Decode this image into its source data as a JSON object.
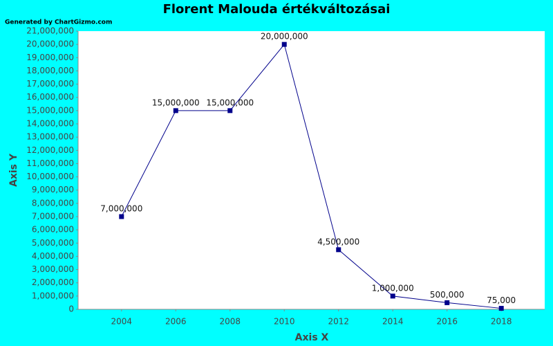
{
  "chart_data": {
    "type": "line",
    "title": "Florent Malouda értékváltozásai",
    "credit": "Generated by ChartGizmo.com",
    "x_label": "Axis X",
    "y_label": "Axis Y",
    "x": [
      2004,
      2006,
      2008,
      2010,
      2012,
      2014,
      2016,
      2018
    ],
    "series": [
      {
        "color": "#00008b",
        "values": [
          7000000,
          15000000,
          15000000,
          20000000,
          4500000,
          1000000,
          500000,
          75000
        ],
        "value_labels": [
          "7,000,000",
          "15,000,000",
          "15,000,000",
          "20,000,000",
          "4,500,000",
          "1,000,000",
          "500,000",
          "75,000"
        ]
      }
    ],
    "xlim": [
      2002.4,
      2019.6
    ],
    "xticks": [
      2004,
      2006,
      2008,
      2010,
      2012,
      2014,
      2016,
      2018
    ],
    "ylim": [
      0,
      21000000
    ],
    "yticks": [
      0,
      {
        "value": 1000000,
        "label": "1,000,000"
      },
      {
        "value": 2000000,
        "label": "2,000,000"
      },
      {
        "value": 3000000,
        "label": "3,000,000"
      },
      {
        "value": 4000000,
        "label": "4,000,000"
      },
      {
        "value": 5000000,
        "label": "5,000,000"
      },
      {
        "value": 6000000,
        "label": "6,000,000"
      },
      {
        "value": 7000000,
        "label": "7,000,000"
      },
      {
        "value": 8000000,
        "label": "8,000,000"
      },
      {
        "value": 9000000,
        "label": "9,000,000"
      },
      {
        "value": 10000000,
        "label": "10,000,000"
      },
      {
        "value": 11000000,
        "label": "11,000,000"
      },
      {
        "value": 12000000,
        "label": "12,000,000"
      },
      {
        "value": 13000000,
        "label": "13,000,000"
      },
      {
        "value": 14000000,
        "label": "14,000,000"
      },
      {
        "value": 15000000,
        "label": "15,000,000"
      },
      {
        "value": 16000000,
        "label": "16,000,000"
      },
      {
        "value": 17000000,
        "label": "17,000,000"
      },
      {
        "value": 18000000,
        "label": "18,000,000"
      },
      {
        "value": 19000000,
        "label": "19,000,000"
      },
      {
        "value": 20000000,
        "label": "20,000,000"
      },
      {
        "value": 21000000,
        "label": "21,000,000"
      }
    ],
    "grid": false
  }
}
